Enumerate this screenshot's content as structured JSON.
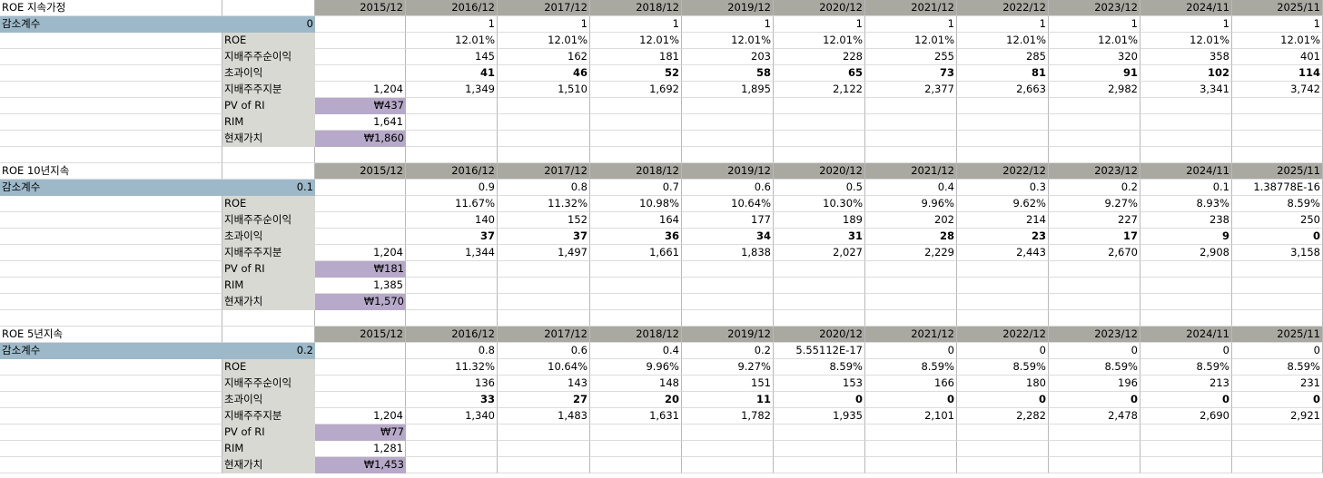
{
  "columns": [
    "2015/12",
    "2016/12",
    "2017/12",
    "2018/12",
    "2019/12",
    "2020/12",
    "2021/12",
    "2022/12",
    "2023/12",
    "2024/11",
    "2025/11"
  ],
  "row_labels": {
    "coef": "감소계수",
    "roe": "ROE",
    "ni": "지배주주순이익",
    "ri": "초과이익",
    "eq": "지배주주지분",
    "pv": "PV of RI",
    "rim": "RIM",
    "cur": "현재가치"
  },
  "sections": [
    {
      "title": "ROE 지속가정",
      "coef_value": "0",
      "factor": [
        "",
        "1",
        "1",
        "1",
        "1",
        "1",
        "1",
        "1",
        "1",
        "1",
        "1"
      ],
      "roe": [
        "",
        "12.01%",
        "12.01%",
        "12.01%",
        "12.01%",
        "12.01%",
        "12.01%",
        "12.01%",
        "12.01%",
        "12.01%",
        "12.01%"
      ],
      "ni": [
        "",
        "145",
        "162",
        "181",
        "203",
        "228",
        "255",
        "285",
        "320",
        "358",
        "401"
      ],
      "ri": [
        "",
        "41",
        "46",
        "52",
        "58",
        "65",
        "73",
        "81",
        "91",
        "102",
        "114"
      ],
      "eq": [
        "1,204",
        "1,349",
        "1,510",
        "1,692",
        "1,895",
        "2,122",
        "2,377",
        "2,663",
        "2,982",
        "3,341",
        "3,742"
      ],
      "pv": "₩437",
      "rim": "1,641",
      "cur": "₩1,860"
    },
    {
      "title": "ROE 10년지속",
      "coef_value": "0.1",
      "factor": [
        "",
        "0.9",
        "0.8",
        "0.7",
        "0.6",
        "0.5",
        "0.4",
        "0.3",
        "0.2",
        "0.1",
        "1.38778E-16"
      ],
      "roe": [
        "",
        "11.67%",
        "11.32%",
        "10.98%",
        "10.64%",
        "10.30%",
        "9.96%",
        "9.62%",
        "9.27%",
        "8.93%",
        "8.59%"
      ],
      "ni": [
        "",
        "140",
        "152",
        "164",
        "177",
        "189",
        "202",
        "214",
        "227",
        "238",
        "250"
      ],
      "ri": [
        "",
        "37",
        "37",
        "36",
        "34",
        "31",
        "28",
        "23",
        "17",
        "9",
        "0"
      ],
      "eq": [
        "1,204",
        "1,344",
        "1,497",
        "1,661",
        "1,838",
        "2,027",
        "2,229",
        "2,443",
        "2,670",
        "2,908",
        "3,158"
      ],
      "pv": "₩181",
      "rim": "1,385",
      "cur": "₩1,570"
    },
    {
      "title": "ROE 5년지속",
      "coef_value": "0.2",
      "factor": [
        "",
        "0.8",
        "0.6",
        "0.4",
        "0.2",
        "5.55112E-17",
        "0",
        "0",
        "0",
        "0",
        "0"
      ],
      "roe": [
        "",
        "11.32%",
        "10.64%",
        "9.96%",
        "9.27%",
        "8.59%",
        "8.59%",
        "8.59%",
        "8.59%",
        "8.59%",
        "8.59%"
      ],
      "ni": [
        "",
        "136",
        "143",
        "148",
        "151",
        "153",
        "166",
        "180",
        "196",
        "213",
        "231"
      ],
      "ri": [
        "",
        "33",
        "27",
        "20",
        "11",
        "0",
        "0",
        "0",
        "0",
        "0",
        "0"
      ],
      "eq": [
        "1,204",
        "1,340",
        "1,483",
        "1,631",
        "1,782",
        "1,935",
        "2,101",
        "2,282",
        "2,478",
        "2,690",
        "2,921"
      ],
      "pv": "₩77",
      "rim": "1,281",
      "cur": "₩1,453"
    }
  ]
}
